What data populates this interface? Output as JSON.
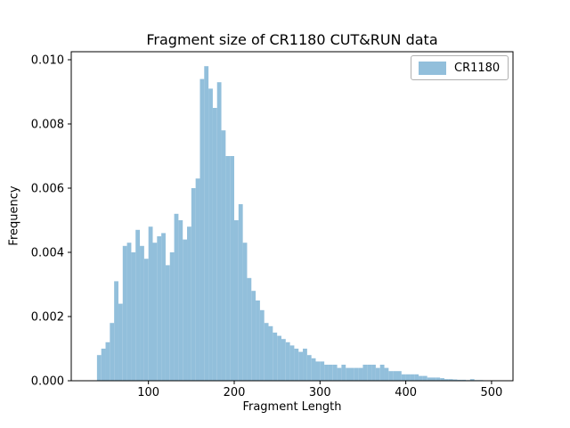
{
  "chart_data": {
    "type": "bar",
    "subtype": "histogram",
    "title": "Fragment size of CR1180 CUT&RUN data",
    "xlabel": "Fragment Length",
    "ylabel": "Frequency",
    "legend": {
      "label": "CR1180",
      "position": "upper right"
    },
    "bar_color": "#92bfdb",
    "grid": false,
    "bin_start": 40,
    "bin_width": 5,
    "xlim": [
      10,
      525
    ],
    "ylim": [
      0,
      0.01025
    ],
    "xticks": [
      100,
      200,
      300,
      400,
      500
    ],
    "xtick_labels": [
      "100",
      "200",
      "300",
      "400",
      "500"
    ],
    "yticks": [
      0.0,
      0.002,
      0.004,
      0.006,
      0.008,
      0.01
    ],
    "ytick_labels": [
      "0.000",
      "0.002",
      "0.004",
      "0.006",
      "0.008",
      "0.010"
    ],
    "values": [
      0.0008,
      0.001,
      0.0012,
      0.0018,
      0.0031,
      0.0024,
      0.0042,
      0.0043,
      0.004,
      0.0047,
      0.0042,
      0.0038,
      0.0048,
      0.0043,
      0.0045,
      0.0046,
      0.0036,
      0.004,
      0.0052,
      0.005,
      0.0044,
      0.0048,
      0.006,
      0.0063,
      0.0094,
      0.0098,
      0.0091,
      0.0085,
      0.0093,
      0.0078,
      0.007,
      0.007,
      0.005,
      0.0055,
      0.0043,
      0.0032,
      0.0028,
      0.0025,
      0.0022,
      0.0018,
      0.0017,
      0.0015,
      0.0014,
      0.0013,
      0.0012,
      0.0011,
      0.001,
      0.0009,
      0.001,
      0.0008,
      0.0007,
      0.0006,
      0.0006,
      0.0005,
      0.0005,
      0.0005,
      0.0004,
      0.0005,
      0.0004,
      0.0004,
      0.0004,
      0.0004,
      0.0005,
      0.0005,
      0.0005,
      0.0004,
      0.0005,
      0.0004,
      0.0003,
      0.0003,
      0.0003,
      0.0002,
      0.0002,
      0.0002,
      0.0002,
      0.00015,
      0.00015,
      0.0001,
      0.0001,
      0.0001,
      8e-05,
      5e-05,
      5e-05,
      4e-05,
      3e-05,
      3e-05,
      2e-05,
      5e-05,
      2e-05,
      2e-05,
      1e-05,
      1e-05
    ]
  },
  "plot_geometry_note": "values are per-bin Frequency heights for bins of width 5 starting at Fragment Length 40"
}
